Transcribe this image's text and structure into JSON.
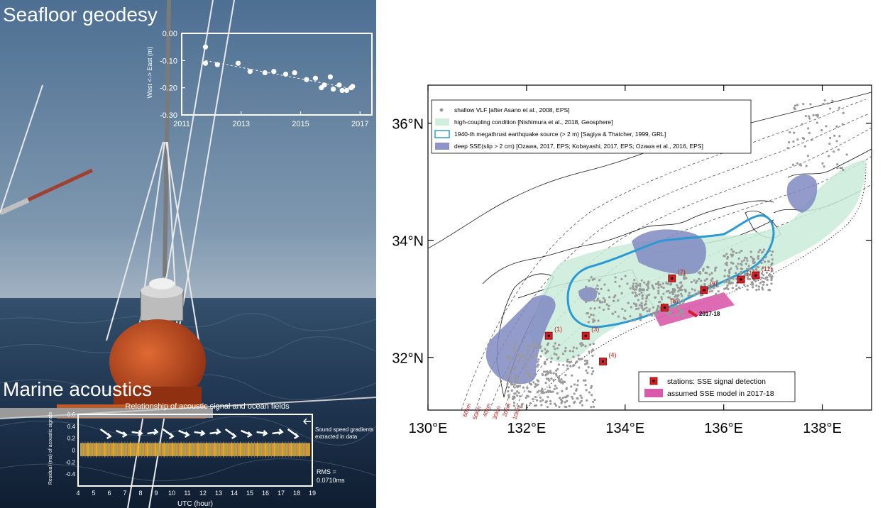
{
  "left_panel": {
    "heading_top": "Seafloor geodesy",
    "heading_bottom": "Marine acoustics"
  },
  "inset_geodesy": {
    "ylabel": "West <-> East (m)",
    "yticks": [
      "0.00",
      "-0.10",
      "-0.20",
      "-0.30"
    ],
    "xticks": [
      "2011",
      "2013",
      "2015",
      "2017"
    ],
    "chart_data": {
      "type": "scatter",
      "xlim": [
        2011,
        2017.4
      ],
      "ylim": [
        -0.3,
        0.0
      ],
      "points": [
        [
          2011.8,
          -0.05
        ],
        [
          2011.8,
          -0.11
        ],
        [
          2012.2,
          -0.115
        ],
        [
          2012.9,
          -0.11
        ],
        [
          2013.3,
          -0.14
        ],
        [
          2013.8,
          -0.145
        ],
        [
          2014.1,
          -0.14
        ],
        [
          2014.5,
          -0.15
        ],
        [
          2014.8,
          -0.145
        ],
        [
          2015.2,
          -0.17
        ],
        [
          2015.5,
          -0.165
        ],
        [
          2015.7,
          -0.2
        ],
        [
          2015.8,
          -0.19
        ],
        [
          2016.0,
          -0.16
        ],
        [
          2016.1,
          -0.205
        ],
        [
          2016.3,
          -0.19
        ],
        [
          2016.4,
          -0.21
        ],
        [
          2016.55,
          -0.21
        ],
        [
          2016.7,
          -0.2
        ],
        [
          2016.75,
          -0.195
        ]
      ],
      "trend": [
        [
          2011.8,
          -0.1
        ],
        [
          2016.8,
          -0.205
        ]
      ]
    }
  },
  "inset_acoustics": {
    "title": "Relationship of acoustic signal and ocean fields",
    "ylabel": "Residual (ms) of acoustic signals",
    "yticks": [
      "0.6",
      "0.4",
      "0.2",
      "0",
      "-0.2",
      "-0.4"
    ],
    "xticks": [
      "4",
      "5",
      "6",
      "7",
      "8",
      "9",
      "10",
      "11",
      "12",
      "13",
      "14",
      "15",
      "16",
      "17",
      "18",
      "19"
    ],
    "xlabel": "UTC (hour)",
    "annotation_arrow_text": "Sound speed gradients extracted in data",
    "rms_label": "RMS =",
    "rms_value": "0.0710ms",
    "chart_data": {
      "type": "scatter",
      "xlim": [
        4,
        19
      ],
      "ylim": [
        -0.6,
        0.6
      ],
      "band": [
        -0.1,
        0.12
      ]
    }
  },
  "map": {
    "lat_labels": [
      "36°N",
      "34°N",
      "32°N"
    ],
    "lon_labels": [
      "130°E",
      "132°E",
      "134°E",
      "136°E",
      "138°E"
    ],
    "legend": [
      {
        "text": "shallow VLF [after Asano et al., 2008, EPS]",
        "color": "#9a9a9a"
      },
      {
        "text": "high-coupling condition  [Nishimura et al., 2018, Geosphere]",
        "color": "#cfeedd"
      },
      {
        "text": "1940-th megathrust earthquake source  (> 2 m) [Sagiya & Thatcher, 1999, GRL]",
        "color": "#2a9ad4"
      },
      {
        "text": "deep SSE(slip > 2 cm) [Ozawa, 2017, EPS; Kobayashi, 2017, EPS; Ozawa et al., 2016, EPS]",
        "color": "#8d94c8"
      }
    ],
    "legend2": [
      {
        "text": "stations: SSE signal detection",
        "color": "#d41f26"
      },
      {
        "text": "assumed SSE model in 2017-18",
        "color": "#d95aaa"
      }
    ],
    "stations": [
      {
        "label": "(1)",
        "lon": 132.45,
        "lat": 32.37
      },
      {
        "label": "(3)",
        "lon": 133.2,
        "lat": 32.37
      },
      {
        "label": "(4)",
        "lon": 133.55,
        "lat": 31.93
      },
      {
        "label": "(7)",
        "lon": 134.95,
        "lat": 33.35
      },
      {
        "label": "(8)",
        "lon": 134.8,
        "lat": 32.85
      },
      {
        "label": "(9)",
        "lon": 135.6,
        "lat": 33.15
      },
      {
        "label": "(10)",
        "lon": 136.35,
        "lat": 33.33
      },
      {
        "label": "(11)",
        "lon": 136.65,
        "lat": 33.4
      }
    ],
    "sse_label": "2017-18",
    "depth_labels": [
      "60km",
      "50km",
      "40km",
      "30km",
      "20km",
      "10km"
    ]
  }
}
